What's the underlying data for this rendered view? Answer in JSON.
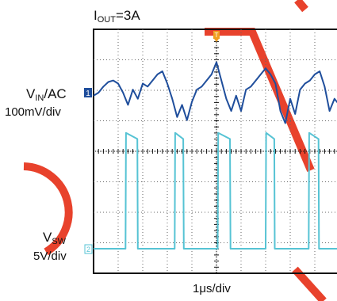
{
  "header": {
    "current": {
      "symbol": "I",
      "subscript": "OUT",
      "rest": "=3A"
    }
  },
  "channels": {
    "vin": {
      "symbol": "V",
      "subscript": "IN",
      "rest": "/AC",
      "scale": "100mV/div",
      "color": "#1f4e9c",
      "marker": "1"
    },
    "vsw": {
      "symbol": "V",
      "subscript": "SW",
      "rest": "",
      "scale": "5V/div",
      "color": "#56c3d4",
      "marker": "2"
    }
  },
  "footer": {
    "timebase": "1μs/div"
  },
  "trigger": {
    "marker": "T",
    "color": "#f0a020"
  },
  "decor": {
    "watermark_color": "#e8422c"
  },
  "chart_data": {
    "type": "line",
    "title": "",
    "grid": true,
    "x_divisions": 10,
    "y_divisions": 8,
    "xlim": [
      0,
      10
    ],
    "xlabel": "1μs/div",
    "series": [
      {
        "name": "VIN/AC",
        "unit": "mV",
        "scale_per_div": 100,
        "x": [
          0,
          0.2,
          0.4,
          0.6,
          0.8,
          1.0,
          1.2,
          1.4,
          1.6,
          1.8,
          2.0,
          2.2,
          2.4,
          2.6,
          2.8,
          3.0,
          3.2,
          3.4,
          3.6,
          3.8,
          4.0,
          4.2,
          4.4,
          4.6,
          4.8,
          5.0,
          5.2,
          5.4,
          5.6,
          5.8,
          6.0,
          6.2,
          6.4,
          6.6,
          6.8,
          7.0,
          7.2,
          7.4,
          7.6,
          7.8,
          8.0,
          8.2,
          8.4,
          8.6,
          8.8,
          9.0,
          9.2,
          9.4,
          9.6,
          9.8,
          10.0
        ],
        "values": [
          -10,
          0,
          20,
          35,
          40,
          30,
          0,
          -40,
          10,
          -20,
          30,
          20,
          40,
          60,
          70,
          30,
          -20,
          -80,
          -40,
          -90,
          -30,
          10,
          20,
          40,
          60,
          100,
          40,
          -20,
          -60,
          -10,
          -60,
          10,
          20,
          40,
          60,
          80,
          60,
          30,
          -60,
          -100,
          -20,
          -70,
          10,
          30,
          40,
          60,
          70,
          20,
          -60,
          -20,
          -40
        ]
      },
      {
        "name": "VSW",
        "unit": "V",
        "scale_per_div": 5,
        "x": [
          0,
          1.3,
          1.32,
          1.78,
          1.8,
          3.3,
          3.32,
          3.65,
          3.67,
          5.05,
          5.07,
          5.55,
          5.57,
          7.0,
          7.02,
          7.35,
          7.37,
          8.75,
          8.77,
          9.15,
          9.17,
          10.0
        ],
        "values": [
          0,
          0,
          19,
          18,
          0,
          0,
          19,
          18,
          0,
          0,
          19,
          18,
          0,
          0,
          19,
          18,
          0,
          0,
          19,
          18,
          0,
          0
        ]
      }
    ]
  }
}
